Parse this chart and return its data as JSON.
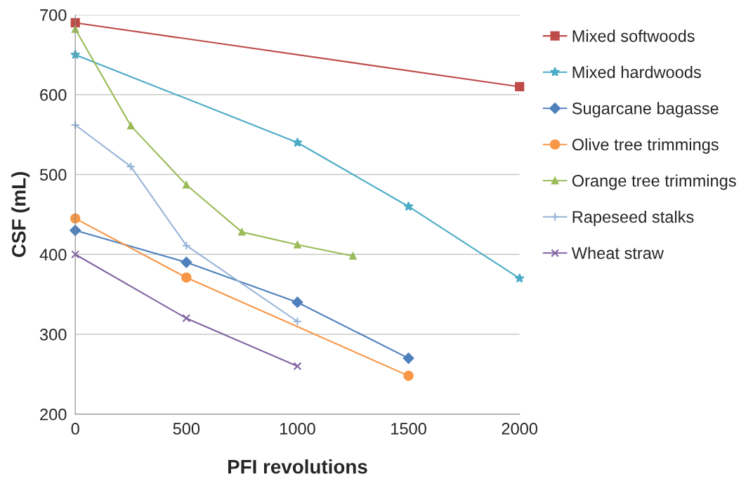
{
  "chart_data": {
    "type": "line",
    "xlabel": "PFI revolutions",
    "ylabel": "CSF (mL)",
    "xlim": [
      0,
      2000
    ],
    "xticks": [
      0,
      500,
      1000,
      1500,
      2000
    ],
    "ylim": [
      200,
      700
    ],
    "yticks": [
      200,
      300,
      400,
      500,
      600,
      700
    ],
    "grid": "y",
    "legend": "right",
    "line_style": "solid",
    "series": [
      {
        "name": "Mixed softwoods",
        "color": "#be4b48",
        "marker": "square",
        "x": [
          0,
          2000
        ],
        "values": [
          690,
          610
        ]
      },
      {
        "name": "Mixed hardwoods",
        "color": "#4bacc6",
        "marker": "star",
        "x": [
          0,
          1000,
          1500,
          2000
        ],
        "values": [
          650,
          540,
          460,
          370
        ]
      },
      {
        "name": "Sugarcane bagasse",
        "color": "#4f81bd",
        "marker": "diamond",
        "x": [
          0,
          500,
          1000,
          1500
        ],
        "values": [
          430,
          390,
          340,
          270
        ]
      },
      {
        "name": "Olive tree trimmings",
        "color": "#f79646",
        "marker": "circle",
        "x": [
          0,
          500,
          1500
        ],
        "values": [
          445,
          371,
          248
        ]
      },
      {
        "name": "Orange tree trimmings",
        "color": "#9bbb59",
        "marker": "triangle",
        "x": [
          0,
          250,
          500,
          750,
          1000,
          1250
        ],
        "values": [
          682,
          561,
          487,
          428,
          412,
          398
        ]
      },
      {
        "name": "Rapeseed stalks",
        "color": "#95b3d7",
        "marker": "plus",
        "x": [
          0,
          250,
          500,
          1000
        ],
        "values": [
          562,
          510,
          411,
          316
        ]
      },
      {
        "name": "Wheat straw",
        "color": "#8064a2",
        "marker": "cross",
        "x": [
          0,
          500,
          1000
        ],
        "values": [
          400,
          320,
          260
        ]
      }
    ]
  }
}
